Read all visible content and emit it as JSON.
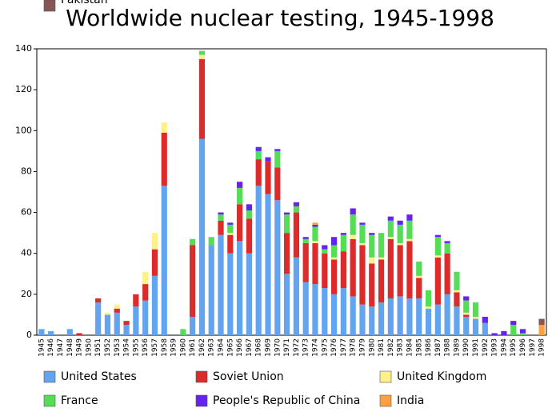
{
  "chart_data": {
    "type": "stacked-bar",
    "title": "Worldwide nuclear testing, 1945-1998",
    "categories": [
      "1945",
      "1946",
      "1947",
      "1948",
      "1949",
      "1950",
      "1951",
      "1952",
      "1953",
      "1954",
      "1955",
      "1956",
      "1957",
      "1958",
      "1959",
      "1960",
      "1961",
      "1962",
      "1963",
      "1964",
      "1965",
      "1966",
      "1967",
      "1968",
      "1969",
      "1970",
      "1971",
      "1972",
      "1973",
      "1974",
      "1975",
      "1976",
      "1977",
      "1978",
      "1979",
      "1980",
      "1981",
      "1982",
      "1983",
      "1984",
      "1985",
      "1986",
      "1987",
      "1988",
      "1989",
      "1990",
      "1991",
      "1992",
      "1993",
      "1994",
      "1995",
      "1996",
      "1997",
      "1998"
    ],
    "series": [
      {
        "name": "United States",
        "color": "#62a4f0",
        "values": [
          3,
          2,
          0,
          3,
          0,
          0,
          16,
          10,
          11,
          5,
          14,
          17,
          29,
          73,
          0,
          0,
          9,
          96,
          44,
          49,
          40,
          46,
          40,
          73,
          69,
          66,
          30,
          38,
          26,
          25,
          23,
          20,
          23,
          19,
          15,
          14,
          16,
          18,
          19,
          18,
          18,
          13,
          15,
          20,
          14,
          9,
          8,
          6,
          0,
          0,
          0,
          0,
          0,
          0
        ]
      },
      {
        "name": "Soviet Union",
        "color": "#dd2a2a",
        "values": [
          0,
          0,
          0,
          0,
          1,
          0,
          2,
          0,
          2,
          2,
          6,
          8,
          13,
          26,
          0,
          0,
          35,
          39,
          0,
          7,
          9,
          18,
          17,
          13,
          16,
          16,
          20,
          22,
          19,
          20,
          17,
          17,
          18,
          28,
          29,
          21,
          21,
          29,
          25,
          28,
          10,
          0,
          23,
          20,
          7,
          1,
          0,
          0,
          0,
          0,
          0,
          0,
          0,
          0
        ]
      },
      {
        "name": "United Kingdom",
        "color": "#fff08a",
        "values": [
          0,
          0,
          0,
          0,
          0,
          0,
          0,
          1,
          2,
          0,
          0,
          6,
          8,
          5,
          0,
          0,
          0,
          2,
          0,
          0,
          1,
          0,
          0,
          0,
          0,
          0,
          0,
          0,
          0,
          1,
          0,
          1,
          0,
          2,
          1,
          3,
          1,
          1,
          1,
          1,
          1,
          1,
          1,
          0,
          1,
          1,
          1,
          0,
          0,
          0,
          0,
          0,
          0,
          0
        ]
      },
      {
        "name": "France",
        "color": "#55dd55",
        "values": [
          0,
          0,
          0,
          0,
          0,
          0,
          0,
          0,
          0,
          0,
          0,
          0,
          0,
          0,
          0,
          3,
          3,
          2,
          4,
          3,
          4,
          8,
          4,
          4,
          0,
          8,
          9,
          3,
          2,
          7,
          2,
          6,
          8,
          10,
          9,
          11,
          12,
          8,
          9,
          9,
          7,
          8,
          9,
          5,
          9,
          6,
          7,
          0,
          0,
          0,
          5,
          1,
          0,
          0
        ]
      },
      {
        "name": "People's Republic of China",
        "color": "#6622ee",
        "values": [
          0,
          0,
          0,
          0,
          0,
          0,
          0,
          0,
          0,
          0,
          0,
          0,
          0,
          0,
          0,
          0,
          0,
          0,
          0,
          1,
          1,
          3,
          3,
          2,
          2,
          1,
          1,
          2,
          1,
          1,
          2,
          4,
          1,
          3,
          1,
          1,
          0,
          2,
          2,
          3,
          0,
          0,
          1,
          1,
          0,
          2,
          0,
          3,
          1,
          2,
          2,
          2,
          0,
          0
        ]
      },
      {
        "name": "India",
        "color": "#ffa040",
        "values": [
          0,
          0,
          0,
          0,
          0,
          0,
          0,
          0,
          0,
          0,
          0,
          0,
          0,
          0,
          0,
          0,
          0,
          0,
          0,
          0,
          0,
          0,
          0,
          0,
          0,
          0,
          0,
          0,
          0,
          1,
          0,
          0,
          0,
          0,
          0,
          0,
          0,
          0,
          0,
          0,
          0,
          0,
          0,
          0,
          0,
          0,
          0,
          0,
          0,
          0,
          0,
          0,
          0,
          5
        ]
      },
      {
        "name": "Pakistan",
        "color": "#885555",
        "values": [
          0,
          0,
          0,
          0,
          0,
          0,
          0,
          0,
          0,
          0,
          0,
          0,
          0,
          0,
          0,
          0,
          0,
          0,
          0,
          0,
          0,
          0,
          0,
          0,
          0,
          0,
          0,
          0,
          0,
          0,
          0,
          0,
          0,
          0,
          0,
          0,
          0,
          0,
          0,
          0,
          0,
          0,
          0,
          0,
          0,
          0,
          0,
          0,
          0,
          0,
          0,
          0,
          0,
          3
        ]
      }
    ],
    "ylim": [
      0,
      140
    ],
    "yticks": [
      0,
      20,
      40,
      60,
      80,
      100,
      120,
      140
    ]
  }
}
